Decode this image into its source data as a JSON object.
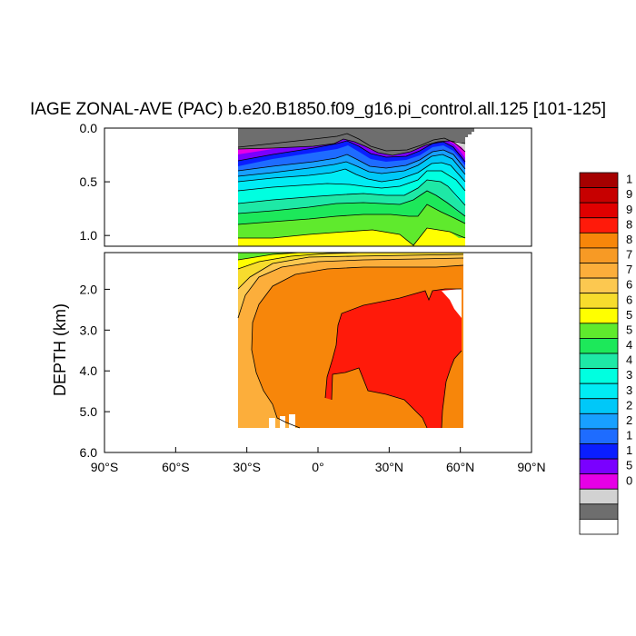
{
  "chart_data": {
    "type": "heatmap",
    "title": "IAGE ZONAL-AVE (PAC) b.e20.B1850.f09_g16.pi_control.all.125 [101-125]",
    "xlabel": "",
    "ylabel": "DEPTH (km)",
    "xlim": [
      -90,
      90
    ],
    "xticks": [
      -90,
      -60,
      -30,
      0,
      30,
      60,
      90
    ],
    "xtick_labels": [
      "90°S",
      "60°S",
      "30°S",
      "0°",
      "30°N",
      "60°N",
      "90°N"
    ],
    "ylim_top_panel": [
      0.0,
      1.1
    ],
    "ylim_bottom_panel": [
      1.1,
      6.0
    ],
    "yticks_top": [
      0.0,
      0.5,
      1.0
    ],
    "ytick_labels_top": [
      "0.0",
      "0.5",
      "1.0"
    ],
    "yticks_bottom": [
      2.0,
      3.0,
      4.0,
      5.0,
      6.0
    ],
    "ytick_labels_bottom": [
      "2.0",
      "3.0",
      "4.0",
      "5.0",
      "6.0"
    ],
    "data_extent_lat": [
      -34,
      61
    ],
    "colorbar_colors": [
      "#a50000",
      "#c70000",
      "#e00000",
      "#ff1a0a",
      "#f7860a",
      "#f79a25",
      "#fcae3b",
      "#fcc850",
      "#f7dc2d",
      "#ffff00",
      "#5fea2d",
      "#1de85a",
      "#1ee8a6",
      "#00ffe0",
      "#00ecf4",
      "#00c8f8",
      "#18a0ff",
      "#1e6cff",
      "#0a1eff",
      "#7a00ff",
      "#e600e6",
      "#d2d2d2",
      "#6e6e6e",
      "#ffffff"
    ],
    "colorbar_labels": [
      "1",
      "9",
      "9",
      "8",
      "8",
      "7",
      "7",
      "6",
      "6",
      "5",
      "5",
      "4",
      "4",
      "3",
      "3",
      "2",
      "2",
      "1",
      "1",
      "5",
      "0"
    ],
    "grid": false,
    "legend": "right"
  }
}
